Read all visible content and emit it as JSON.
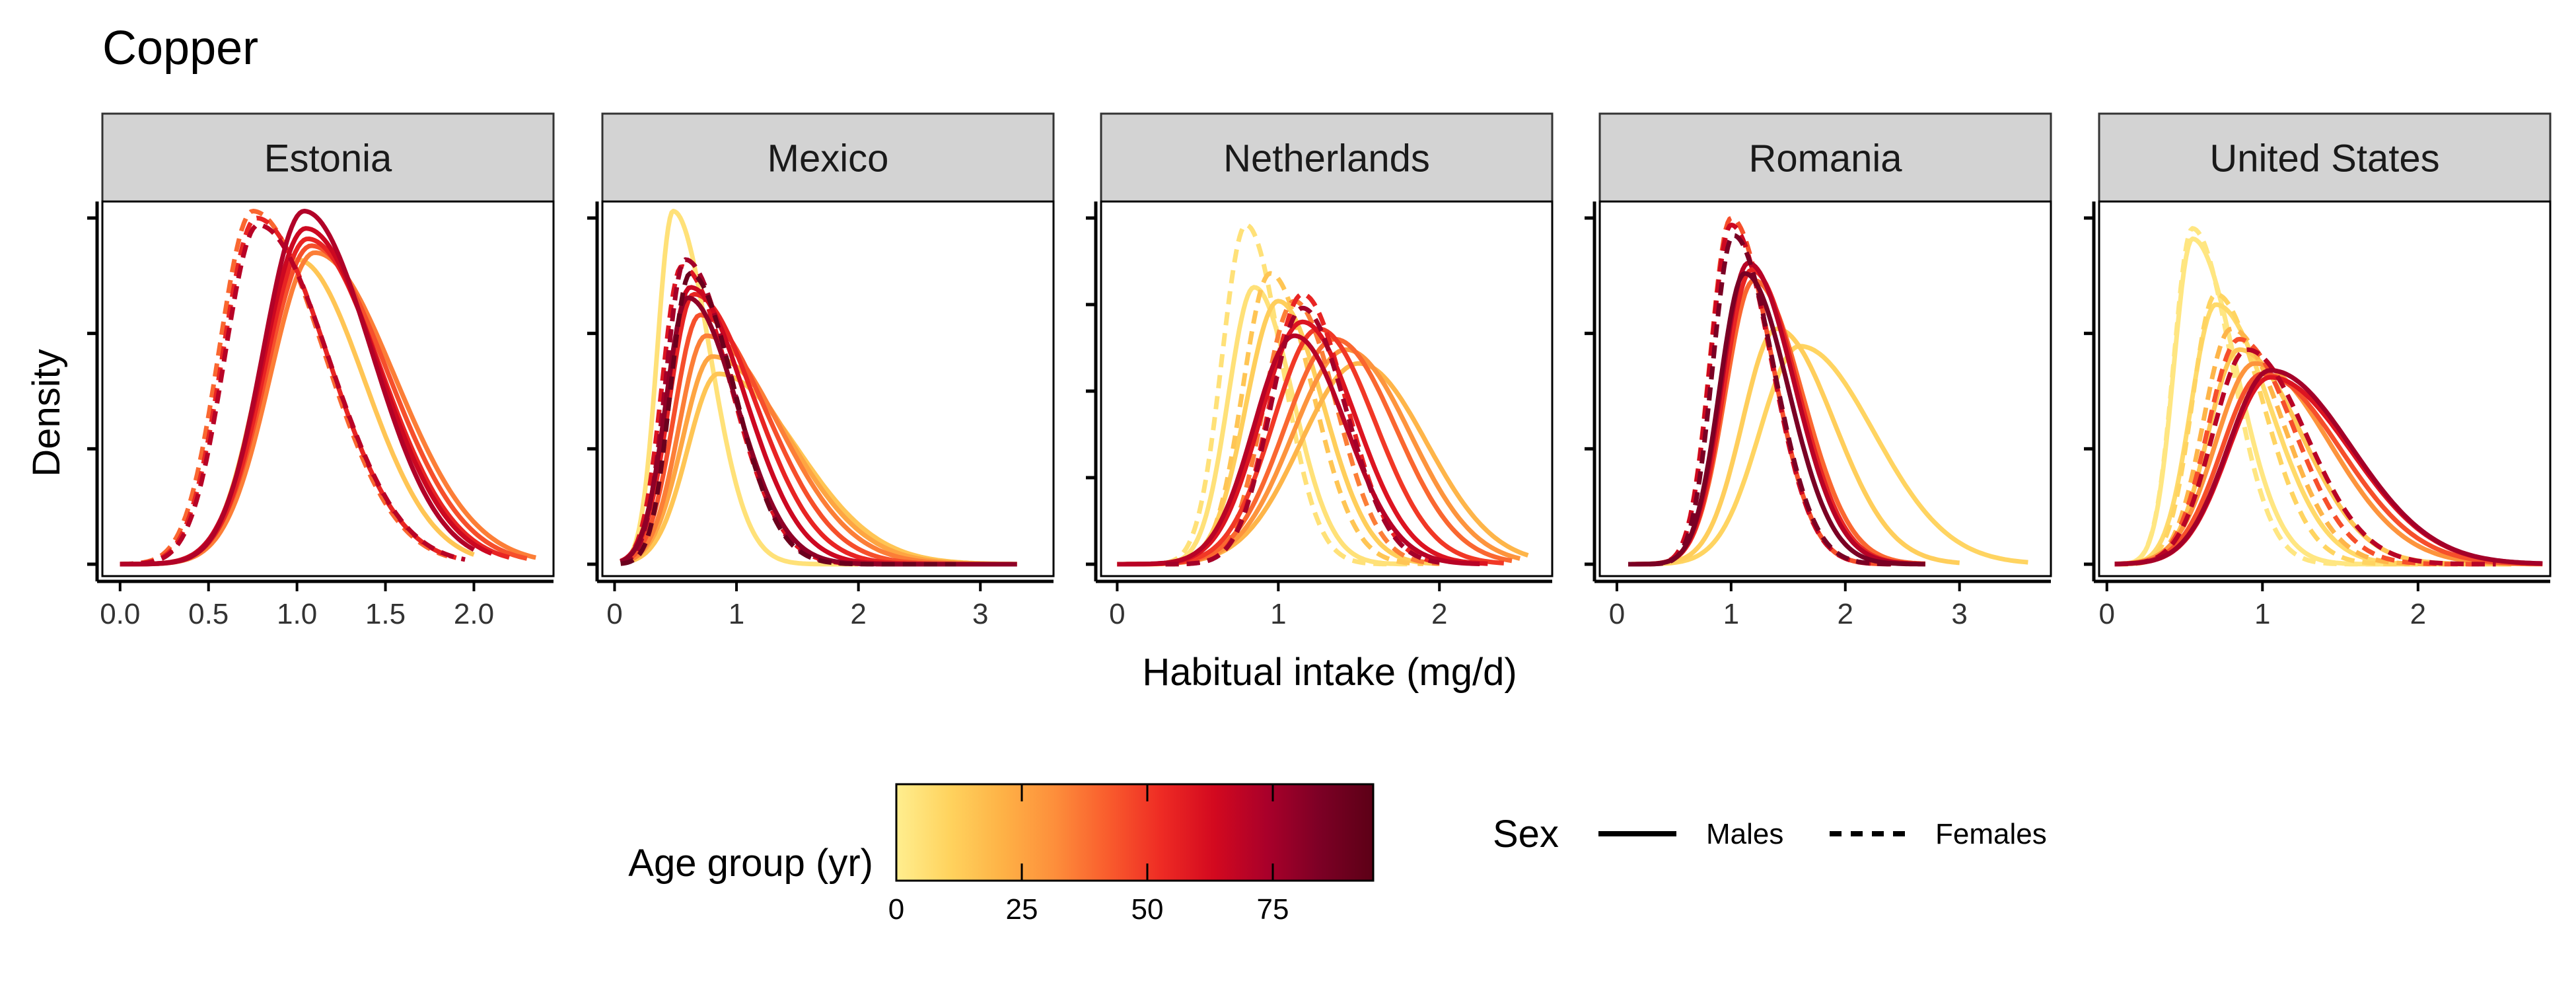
{
  "title": "Copper",
  "xlabel": "Habitual intake (mg/d)",
  "ylabel": "Density",
  "legend_color": {
    "title": "Age group (yr)",
    "ticks": [
      0,
      25,
      50,
      75
    ],
    "range": [
      0,
      95
    ],
    "colors": [
      "#FFEE8F",
      "#FFD35E",
      "#FEB246",
      "#FD8E3B",
      "#F95C2D",
      "#EE2B24",
      "#D3091F",
      "#A9002A",
      "#7C0025",
      "#5C0016"
    ]
  },
  "legend_linetype": {
    "title": "Sex",
    "items": [
      {
        "label": "Males",
        "dash": "solid"
      },
      {
        "label": "Females",
        "dash": "dashed"
      }
    ]
  },
  "chart_data": {
    "type": "line",
    "title": "Copper",
    "xlabel": "Habitual intake (mg/d)",
    "ylabel": "Density",
    "y_tick_labels_shown": false,
    "panels": [
      {
        "name": "Estonia",
        "xlim": [
          -0.1,
          2.45
        ],
        "x_ticks": [
          0.0,
          0.5,
          1.0,
          1.5,
          2.0
        ],
        "x_tick_labels": [
          "0.0",
          "0.5",
          "1.0",
          "1.5",
          "2.0"
        ],
        "n_y_ticks": 4,
        "curves": [
          {
            "sex": "Males",
            "age": 15,
            "mode": 1.0,
            "sd_left": 0.22,
            "sd_right": 0.38,
            "peak": 0.88,
            "start": 0.0,
            "end": 2.0
          },
          {
            "sex": "Males",
            "age": 35,
            "mode": 1.1,
            "sd_left": 0.25,
            "sd_right": 0.45,
            "peak": 0.9,
            "start": 0.0,
            "end": 2.35
          },
          {
            "sex": "Males",
            "age": 45,
            "mode": 1.08,
            "sd_left": 0.25,
            "sd_right": 0.43,
            "peak": 0.92,
            "start": 0.0,
            "end": 2.3
          },
          {
            "sex": "Males",
            "age": 55,
            "mode": 1.06,
            "sd_left": 0.24,
            "sd_right": 0.41,
            "peak": 0.94,
            "start": 0.0,
            "end": 2.2
          },
          {
            "sex": "Males",
            "age": 65,
            "mode": 1.05,
            "sd_left": 0.24,
            "sd_right": 0.4,
            "peak": 0.97,
            "start": 0.0,
            "end": 2.1
          },
          {
            "sex": "Males",
            "age": 72,
            "mode": 1.04,
            "sd_left": 0.23,
            "sd_right": 0.38,
            "peak": 1.02,
            "start": 0.0,
            "end": 2.0
          },
          {
            "sex": "Females",
            "age": 40,
            "mode": 0.75,
            "sd_left": 0.19,
            "sd_right": 0.4,
            "peak": 1.02,
            "start": 0.0,
            "end": 1.85
          },
          {
            "sex": "Females",
            "age": 55,
            "mode": 0.77,
            "sd_left": 0.19,
            "sd_right": 0.4,
            "peak": 1.0,
            "start": 0.0,
            "end": 1.9
          },
          {
            "sex": "Females",
            "age": 70,
            "mode": 0.78,
            "sd_left": 0.19,
            "sd_right": 0.4,
            "peak": 0.98,
            "start": 0.0,
            "end": 1.95
          }
        ]
      },
      {
        "name": "Mexico",
        "xlim": [
          -0.1,
          3.6
        ],
        "x_ticks": [
          0,
          1,
          2,
          3
        ],
        "x_tick_labels": [
          "0",
          "1",
          "2",
          "3"
        ],
        "n_y_ticks": 4,
        "curves": [
          {
            "sex": "Males",
            "age": 5,
            "mode": 0.48,
            "sd_left": 0.13,
            "sd_right": 0.3,
            "peak": 1.02,
            "start": 0.05,
            "end": 2.0
          },
          {
            "sex": "Males",
            "age": 15,
            "mode": 0.85,
            "sd_left": 0.25,
            "sd_right": 0.65,
            "peak": 0.55,
            "start": 0.05,
            "end": 3.3
          },
          {
            "sex": "Males",
            "age": 25,
            "mode": 0.8,
            "sd_left": 0.24,
            "sd_right": 0.63,
            "peak": 0.6,
            "start": 0.05,
            "end": 3.3
          },
          {
            "sex": "Males",
            "age": 35,
            "mode": 0.75,
            "sd_left": 0.22,
            "sd_right": 0.6,
            "peak": 0.66,
            "start": 0.05,
            "end": 3.3
          },
          {
            "sex": "Males",
            "age": 45,
            "mode": 0.7,
            "sd_left": 0.21,
            "sd_right": 0.55,
            "peak": 0.72,
            "start": 0.05,
            "end": 3.3
          },
          {
            "sex": "Males",
            "age": 55,
            "mode": 0.65,
            "sd_left": 0.2,
            "sd_right": 0.5,
            "peak": 0.78,
            "start": 0.05,
            "end": 3.3
          },
          {
            "sex": "Males",
            "age": 65,
            "mode": 0.62,
            "sd_left": 0.19,
            "sd_right": 0.45,
            "peak": 0.8,
            "start": 0.05,
            "end": 3.3
          },
          {
            "sex": "Males",
            "age": 80,
            "mode": 0.6,
            "sd_left": 0.18,
            "sd_right": 0.4,
            "peak": 0.77,
            "start": 0.05,
            "end": 3.3
          },
          {
            "sex": "Females",
            "age": 60,
            "mode": 0.55,
            "sd_left": 0.16,
            "sd_right": 0.4,
            "peak": 0.86,
            "start": 0.05,
            "end": 2.8
          },
          {
            "sex": "Females",
            "age": 75,
            "mode": 0.58,
            "sd_left": 0.16,
            "sd_right": 0.38,
            "peak": 0.88,
            "start": 0.05,
            "end": 2.8
          },
          {
            "sex": "Females",
            "age": 90,
            "mode": 0.62,
            "sd_left": 0.16,
            "sd_right": 0.36,
            "peak": 0.84,
            "start": 0.05,
            "end": 2.8
          }
        ]
      },
      {
        "name": "Netherlands",
        "xlim": [
          -0.1,
          2.7
        ],
        "x_ticks": [
          0,
          1,
          2
        ],
        "x_tick_labels": [
          "0",
          "1",
          "2"
        ],
        "n_y_ticks": 5,
        "curves": [
          {
            "sex": "Males",
            "age": 20,
            "mode": 1.5,
            "sd_left": 0.36,
            "sd_right": 0.42,
            "peak": 0.58,
            "start": 0.0,
            "end": 2.55
          },
          {
            "sex": "Males",
            "age": 30,
            "mode": 1.42,
            "sd_left": 0.33,
            "sd_right": 0.4,
            "peak": 0.62,
            "start": 0.0,
            "end": 2.5
          },
          {
            "sex": "Males",
            "age": 40,
            "mode": 1.35,
            "sd_left": 0.31,
            "sd_right": 0.38,
            "peak": 0.65,
            "start": 0.0,
            "end": 2.45
          },
          {
            "sex": "Males",
            "age": 50,
            "mode": 1.25,
            "sd_left": 0.28,
            "sd_right": 0.35,
            "peak": 0.68,
            "start": 0.0,
            "end": 2.4
          },
          {
            "sex": "Males",
            "age": 60,
            "mode": 1.15,
            "sd_left": 0.26,
            "sd_right": 0.33,
            "peak": 0.7,
            "start": 0.0,
            "end": 2.3
          },
          {
            "sex": "Males",
            "age": 70,
            "mode": 1.1,
            "sd_left": 0.25,
            "sd_right": 0.32,
            "peak": 0.66,
            "start": 0.0,
            "end": 2.25
          },
          {
            "sex": "Males",
            "age": 5,
            "mode": 0.85,
            "sd_left": 0.16,
            "sd_right": 0.24,
            "peak": 0.8,
            "start": 0.0,
            "end": 1.8
          },
          {
            "sex": "Males",
            "age": 12,
            "mode": 1.0,
            "sd_left": 0.2,
            "sd_right": 0.28,
            "peak": 0.76,
            "start": 0.0,
            "end": 2.0
          },
          {
            "sex": "Females",
            "age": 5,
            "mode": 0.8,
            "sd_left": 0.15,
            "sd_right": 0.22,
            "peak": 0.98,
            "start": 0.3,
            "end": 1.7
          },
          {
            "sex": "Females",
            "age": 15,
            "mode": 0.95,
            "sd_left": 0.17,
            "sd_right": 0.26,
            "peak": 0.84,
            "start": 0.3,
            "end": 1.9
          },
          {
            "sex": "Females",
            "age": 35,
            "mode": 1.1,
            "sd_left": 0.19,
            "sd_right": 0.26,
            "peak": 0.76,
            "start": 0.3,
            "end": 2.0
          },
          {
            "sex": "Females",
            "age": 55,
            "mode": 1.15,
            "sd_left": 0.2,
            "sd_right": 0.27,
            "peak": 0.78,
            "start": 0.3,
            "end": 2.0
          },
          {
            "sex": "Females",
            "age": 75,
            "mode": 1.15,
            "sd_left": 0.2,
            "sd_right": 0.27,
            "peak": 0.74,
            "start": 0.3,
            "end": 2.0
          }
        ]
      },
      {
        "name": "Romania",
        "xlim": [
          -0.15,
          3.8
        ],
        "x_ticks": [
          0,
          1,
          2,
          3
        ],
        "x_tick_labels": [
          "0",
          "1",
          "2",
          "3"
        ],
        "n_y_ticks": 4,
        "curves": [
          {
            "sex": "Males",
            "age": 10,
            "mode": 1.6,
            "sd_left": 0.35,
            "sd_right": 0.65,
            "peak": 0.63,
            "start": 0.1,
            "end": 3.6
          },
          {
            "sex": "Males",
            "age": 12,
            "mode": 1.4,
            "sd_left": 0.3,
            "sd_right": 0.5,
            "peak": 0.68,
            "start": 0.1,
            "end": 3.0
          },
          {
            "sex": "Males",
            "age": 40,
            "mode": 1.2,
            "sd_left": 0.25,
            "sd_right": 0.42,
            "peak": 0.82,
            "start": 0.1,
            "end": 2.7
          },
          {
            "sex": "Males",
            "age": 55,
            "mode": 1.18,
            "sd_left": 0.24,
            "sd_right": 0.4,
            "peak": 0.85,
            "start": 0.1,
            "end": 2.7
          },
          {
            "sex": "Males",
            "age": 70,
            "mode": 1.15,
            "sd_left": 0.23,
            "sd_right": 0.4,
            "peak": 0.87,
            "start": 0.1,
            "end": 2.7
          },
          {
            "sex": "Males",
            "age": 85,
            "mode": 1.12,
            "sd_left": 0.22,
            "sd_right": 0.38,
            "peak": 0.84,
            "start": 0.1,
            "end": 2.7
          },
          {
            "sex": "Females",
            "age": 45,
            "mode": 1.0,
            "sd_left": 0.18,
            "sd_right": 0.35,
            "peak": 1.0,
            "start": 0.1,
            "end": 2.4
          },
          {
            "sex": "Females",
            "age": 65,
            "mode": 1.0,
            "sd_left": 0.18,
            "sd_right": 0.35,
            "peak": 0.98,
            "start": 0.1,
            "end": 2.4
          },
          {
            "sex": "Females",
            "age": 85,
            "mode": 1.02,
            "sd_left": 0.18,
            "sd_right": 0.35,
            "peak": 0.95,
            "start": 0.1,
            "end": 2.4
          }
        ]
      },
      {
        "name": "United States",
        "xlim": [
          -0.05,
          2.85
        ],
        "x_ticks": [
          0,
          1,
          2
        ],
        "x_tick_labels": [
          "0",
          "1",
          "2"
        ],
        "n_y_ticks": 4,
        "curves": [
          {
            "sex": "Males",
            "age": 3,
            "mode": 0.55,
            "sd_left": 0.12,
            "sd_right": 0.28,
            "peak": 0.94,
            "start": 0.05,
            "end": 2.0
          },
          {
            "sex": "Males",
            "age": 8,
            "mode": 0.7,
            "sd_left": 0.16,
            "sd_right": 0.35,
            "peak": 0.75,
            "start": 0.05,
            "end": 2.3
          },
          {
            "sex": "Males",
            "age": 15,
            "mode": 0.85,
            "sd_left": 0.2,
            "sd_right": 0.4,
            "peak": 0.62,
            "start": 0.05,
            "end": 2.6
          },
          {
            "sex": "Males",
            "age": 30,
            "mode": 0.95,
            "sd_left": 0.25,
            "sd_right": 0.48,
            "peak": 0.58,
            "start": 0.05,
            "end": 2.8
          },
          {
            "sex": "Males",
            "age": 45,
            "mode": 1.0,
            "sd_left": 0.26,
            "sd_right": 0.5,
            "peak": 0.55,
            "start": 0.05,
            "end": 2.8
          },
          {
            "sex": "Males",
            "age": 60,
            "mode": 1.05,
            "sd_left": 0.27,
            "sd_right": 0.52,
            "peak": 0.54,
            "start": 0.05,
            "end": 2.8
          },
          {
            "sex": "Males",
            "age": 75,
            "mode": 1.05,
            "sd_left": 0.27,
            "sd_right": 0.52,
            "peak": 0.56,
            "start": 0.05,
            "end": 2.8
          },
          {
            "sex": "Females",
            "age": 3,
            "mode": 0.55,
            "sd_left": 0.12,
            "sd_right": 0.25,
            "peak": 0.97,
            "start": 0.05,
            "end": 1.8
          },
          {
            "sex": "Females",
            "age": 10,
            "mode": 0.7,
            "sd_left": 0.15,
            "sd_right": 0.3,
            "peak": 0.78,
            "start": 0.05,
            "end": 2.0
          },
          {
            "sex": "Females",
            "age": 20,
            "mode": 0.8,
            "sd_left": 0.18,
            "sd_right": 0.33,
            "peak": 0.68,
            "start": 0.05,
            "end": 2.2
          },
          {
            "sex": "Females",
            "age": 45,
            "mode": 0.85,
            "sd_left": 0.2,
            "sd_right": 0.35,
            "peak": 0.65,
            "start": 0.05,
            "end": 2.4
          },
          {
            "sex": "Females",
            "age": 70,
            "mode": 0.9,
            "sd_left": 0.22,
            "sd_right": 0.38,
            "peak": 0.62,
            "start": 0.05,
            "end": 2.5
          }
        ]
      }
    ]
  }
}
